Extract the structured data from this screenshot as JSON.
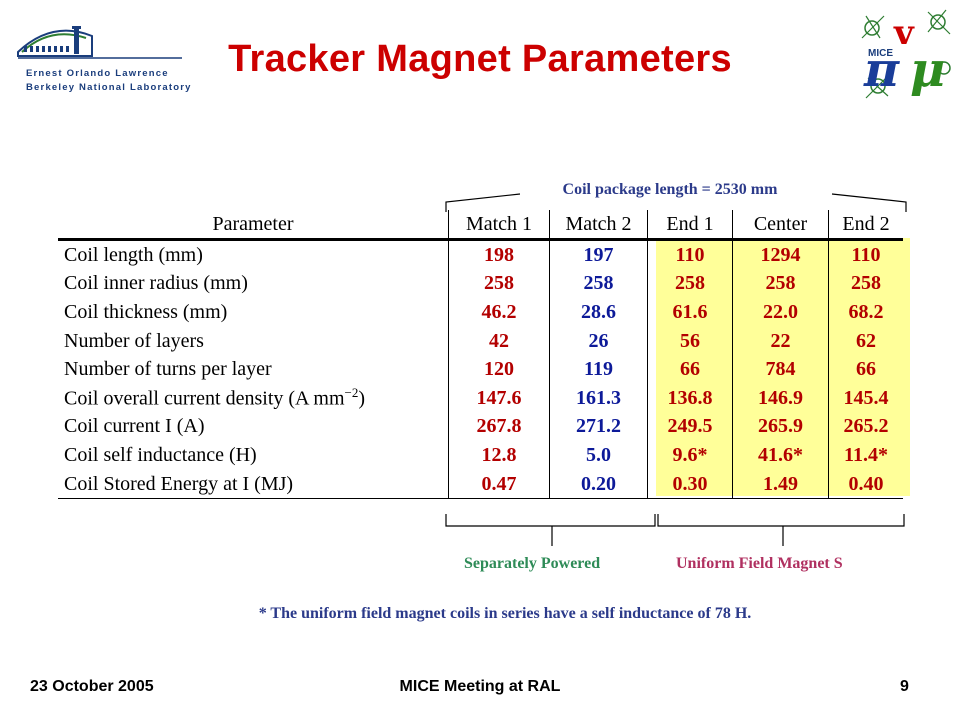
{
  "logos": {
    "lbnl_line1": "Ernest Orlando Lawrence",
    "lbnl_line2": "Berkeley National Laboratory",
    "mice_text": "MICE"
  },
  "title": "Tracker Magnet Parameters",
  "coil_package_label": "Coil package length = 2530 mm",
  "table": {
    "headers": [
      "Parameter",
      "Match 1",
      "Match 2",
      "End 1",
      "Center",
      "End 2"
    ],
    "rows": [
      {
        "label": "Coil length (mm)",
        "values": [
          "198",
          "197",
          "110",
          "1294",
          "110"
        ]
      },
      {
        "label": "Coil inner radius (mm)",
        "values": [
          "258",
          "258",
          "258",
          "258",
          "258"
        ]
      },
      {
        "label": "Coil thickness (mm)",
        "values": [
          "46.2",
          "28.6",
          "61.6",
          "22.0",
          "68.2"
        ]
      },
      {
        "label": "Number of layers",
        "values": [
          "42",
          "26",
          "56",
          "22",
          "62"
        ]
      },
      {
        "label": "Number of turns per layer",
        "values": [
          "120",
          "119",
          "66",
          "784",
          "66"
        ]
      },
      {
        "label": "Coil overall current density (A mm",
        "label_sup": "−2",
        "label_suffix": ")",
        "values": [
          "147.6",
          "161.3",
          "136.8",
          "146.9",
          "145.4"
        ]
      },
      {
        "label": "Coil current I (A)",
        "values": [
          "267.8",
          "271.2",
          "249.5",
          "265.9",
          "265.2"
        ]
      },
      {
        "label": "Coil self inductance (H)",
        "values": [
          "12.8",
          "5.0",
          "9.6*",
          "41.6*",
          "11.4*"
        ]
      },
      {
        "label": "Coil Stored Energy at I (MJ)",
        "values": [
          "0.47",
          "0.20",
          "0.30",
          "1.49",
          "0.40"
        ]
      }
    ]
  },
  "groups": {
    "separately_powered": "Separately Powered",
    "uniform_field": "Uniform Field Magnet S"
  },
  "note": "*  The uniform field magnet coils in series have a self inductance of 78 H.",
  "footer": {
    "date": "23 October 2005",
    "meeting": "MICE Meeting at RAL",
    "page": "9"
  },
  "colors": {
    "title": "#cc0000",
    "match1": "#b30000",
    "blue_values": "#0d1a99",
    "highlight": "#ffff99",
    "separately_powered": "#2e8b57",
    "uniform_field": "#b03060",
    "note": "#2b3a8a"
  }
}
